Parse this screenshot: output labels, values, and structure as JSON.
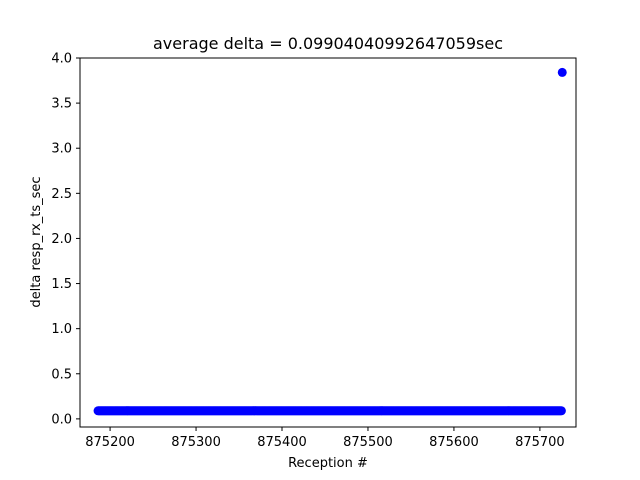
{
  "chart_data": {
    "type": "scatter",
    "title": "average delta = 0.09904040992647059sec",
    "xlabel": "Reception #",
    "ylabel": "delta resp_rx_ts_sec",
    "xlim": [
      875165,
      875742
    ],
    "ylim": [
      -0.09,
      4.0
    ],
    "xticks": [
      875200,
      875300,
      875400,
      875500,
      875600,
      875700
    ],
    "yticks": [
      0.0,
      0.5,
      1.0,
      1.5,
      2.0,
      2.5,
      3.0,
      3.5,
      4.0
    ],
    "xtick_labels": [
      "875200",
      "875300",
      "875400",
      "875500",
      "875600",
      "875700"
    ],
    "ytick_labels": [
      "0.0",
      "0.5",
      "1.0",
      "1.5",
      "2.0",
      "2.5",
      "3.0",
      "3.5",
      "4.0"
    ],
    "grid": false,
    "legend": "none",
    "marker_color": "#0000ff",
    "series": [
      {
        "x_start": 875186,
        "x_end": 875726,
        "x_step": 1,
        "baseline_y": 0.09,
        "points": [
          {
            "x": 875726,
            "y": 3.84
          }
        ]
      }
    ]
  }
}
